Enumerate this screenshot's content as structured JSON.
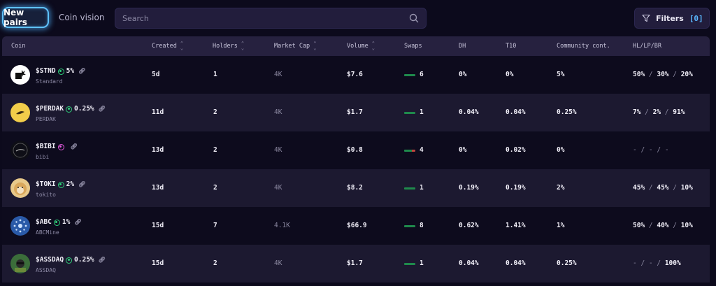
{
  "tabs": {
    "new_pairs": "New pairs",
    "coin_vision": "Coin vision"
  },
  "search": {
    "placeholder": "Search"
  },
  "filters": {
    "label": "Filters",
    "count": "[0]"
  },
  "columns": {
    "coin": "Coin",
    "created": "Created",
    "holders": "Holders",
    "market_cap": "Market Cap",
    "volume": "Volume",
    "swaps": "Swaps",
    "dh": "DH",
    "t10": "T10",
    "community": "Community cont.",
    "hllpbr": "HL/LP/BR"
  },
  "rows": [
    {
      "symbol": "$STND",
      "pct": "5%",
      "name": "Standard",
      "created": "5d",
      "holders": "1",
      "market_cap": "4K",
      "volume": "$7.6",
      "swaps": "6",
      "dh": "0%",
      "t10": "0%",
      "community": "5%",
      "hl": "50%",
      "lp": "30%",
      "br": "20%",
      "icon": "standard-logo-icon",
      "dot": "green",
      "avatar_bg": "#ffffff"
    },
    {
      "symbol": "$PERDAK",
      "pct": "0.25%",
      "name": "PERDAK",
      "created": "11d",
      "holders": "2",
      "market_cap": "4K",
      "volume": "$1.7",
      "swaps": "1",
      "dh": "0.04%",
      "t10": "0.04%",
      "community": "0.25%",
      "hl": "7%",
      "lp": "2%",
      "br": "91%",
      "icon": "perdak-logo-icon",
      "dot": "green",
      "avatar_bg": "#f2cd4a"
    },
    {
      "symbol": "$BIBI",
      "pct": "",
      "name": "bibi",
      "created": "13d",
      "holders": "2",
      "market_cap": "4K",
      "volume": "$0.8",
      "swaps": "4",
      "dh": "0%",
      "t10": "0.02%",
      "community": "0%",
      "hl": "-",
      "lp": "-",
      "br": "-",
      "icon": "bibi-logo-icon",
      "dot": "pink",
      "avatar_bg": "#0e0e16"
    },
    {
      "symbol": "$TOKI",
      "pct": "2%",
      "name": "tokito",
      "created": "13d",
      "holders": "2",
      "market_cap": "4K",
      "volume": "$8.2",
      "swaps": "1",
      "dh": "0.19%",
      "t10": "0.19%",
      "community": "2%",
      "hl": "45%",
      "lp": "45%",
      "br": "10%",
      "icon": "doge-logo-icon",
      "dot": "green",
      "avatar_bg": "#e8c98a"
    },
    {
      "symbol": "$ABC",
      "pct": "1%",
      "name": "ABCMine",
      "created": "15d",
      "holders": "7",
      "market_cap": "4.1K",
      "volume": "$66.9",
      "swaps": "8",
      "dh": "0.62%",
      "t10": "1.41%",
      "community": "1%",
      "hl": "50%",
      "lp": "40%",
      "br": "10%",
      "icon": "abc-logo-icon",
      "dot": "green",
      "avatar_bg": "#2a5aa8"
    },
    {
      "symbol": "$ASSDAQ",
      "pct": "0.25%",
      "name": "ASSDAQ",
      "created": "15d",
      "holders": "2",
      "market_cap": "4K",
      "volume": "$1.7",
      "swaps": "1",
      "dh": "0.04%",
      "t10": "0.04%",
      "community": "0.25%",
      "hl": "-",
      "lp": "-",
      "br": "100%",
      "icon": "assdaq-logo-icon",
      "dot": "green",
      "avatar_bg": "#3b6d3a"
    }
  ]
}
